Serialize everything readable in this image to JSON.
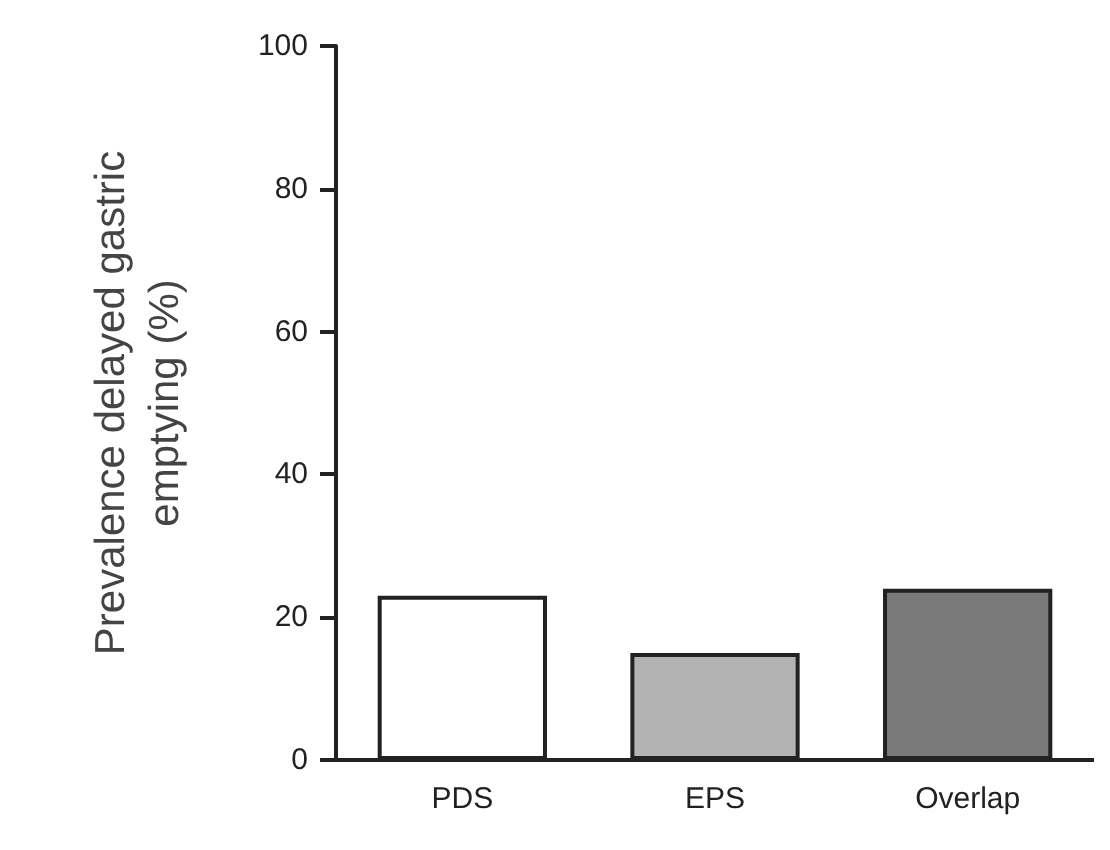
{
  "chart_data": {
    "type": "bar",
    "ylabel": "Prevalence delayed gastric\nemptying (%)",
    "categories": [
      "PDS",
      "EPS",
      "Overlap"
    ],
    "values": [
      23,
      15,
      24
    ],
    "colors": [
      "#ffffff",
      "#b3b3b3",
      "#7a7a7a"
    ],
    "ylim": [
      0,
      100
    ],
    "yticks": [
      0,
      20,
      40,
      60,
      80,
      100
    ],
    "grid": false
  }
}
